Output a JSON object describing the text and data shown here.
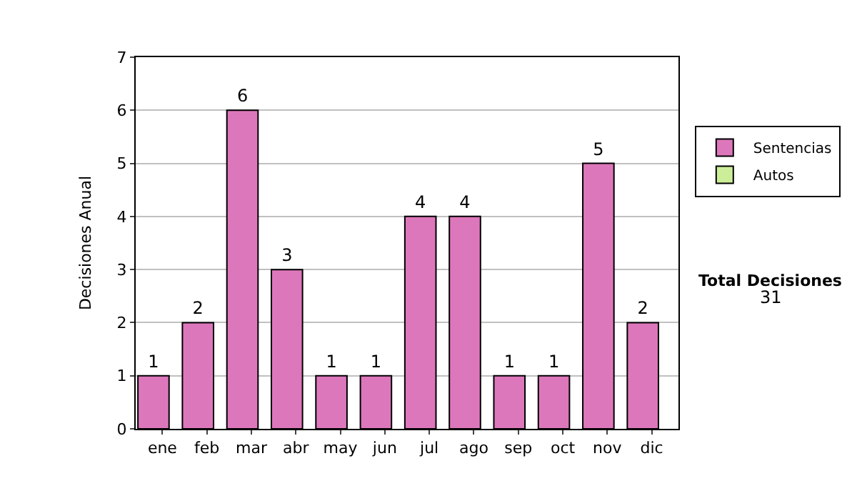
{
  "chart_data": {
    "type": "bar",
    "ylabel": "Decisiones Anual",
    "categories": [
      "ene",
      "feb",
      "mar",
      "abr",
      "may",
      "jun",
      "jul",
      "ago",
      "sep",
      "oct",
      "nov",
      "dic"
    ],
    "series": [
      {
        "name": "Sentencias",
        "color": "#dd77bb",
        "values": [
          1,
          2,
          6,
          3,
          1,
          1,
          4,
          4,
          1,
          1,
          5,
          2
        ]
      },
      {
        "name": "Autos",
        "color": "#ccee99",
        "values": [
          null,
          null,
          null,
          null,
          null,
          null,
          null,
          null,
          null,
          null,
          null,
          null
        ]
      }
    ],
    "ylim": [
      0,
      7
    ],
    "yticks": [
      0,
      1,
      2,
      3,
      4,
      5,
      6,
      7
    ],
    "grid": "y",
    "legend": "right",
    "data_labels": true,
    "annotations": [
      "Total Decisiones",
      "31"
    ]
  }
}
